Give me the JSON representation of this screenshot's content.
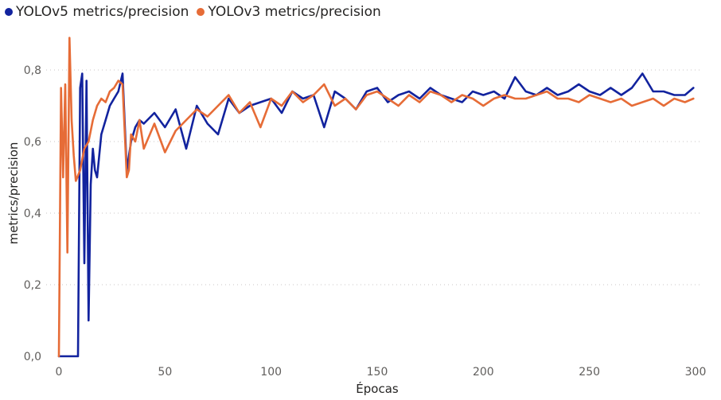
{
  "chart_data": {
    "type": "line",
    "title": "",
    "xlabel": "Épocas",
    "ylabel": "metrics/precision",
    "xlim": [
      0,
      300
    ],
    "ylim": [
      0,
      0.8
    ],
    "x_ticks": [
      0,
      50,
      100,
      150,
      200,
      250,
      300
    ],
    "x_tick_labels": [
      "0",
      "50",
      "100",
      "150",
      "200",
      "250",
      "300"
    ],
    "y_ticks": [
      0,
      0.2,
      0.4,
      0.6,
      0.8
    ],
    "y_tick_labels": [
      "0,0",
      "0,2",
      "0,4",
      "0,6",
      "0,8"
    ],
    "grid": "horizontal-dotted",
    "legend_position": "top-left",
    "series": [
      {
        "name": "YOLOv5 metrics/precision",
        "color": "#12239E",
        "x": [
          0,
          2,
          4,
          6,
          8,
          9,
          10,
          11,
          12,
          13,
          14,
          15,
          16,
          17,
          18,
          20,
          22,
          24,
          26,
          28,
          30,
          32,
          34,
          36,
          38,
          40,
          45,
          50,
          55,
          60,
          65,
          70,
          75,
          80,
          85,
          90,
          95,
          100,
          105,
          110,
          115,
          120,
          125,
          130,
          135,
          140,
          145,
          150,
          155,
          160,
          165,
          170,
          175,
          180,
          185,
          190,
          195,
          200,
          205,
          210,
          215,
          220,
          225,
          230,
          235,
          240,
          245,
          250,
          255,
          260,
          265,
          270,
          275,
          280,
          285,
          290,
          295,
          299
        ],
        "y": [
          0.0,
          0.0,
          0.0,
          0.0,
          0.0,
          0.0,
          0.75,
          0.79,
          0.26,
          0.77,
          0.1,
          0.48,
          0.58,
          0.52,
          0.5,
          0.62,
          0.66,
          0.7,
          0.72,
          0.74,
          0.79,
          0.52,
          0.6,
          0.64,
          0.66,
          0.65,
          0.68,
          0.64,
          0.69,
          0.58,
          0.7,
          0.65,
          0.62,
          0.72,
          0.68,
          0.7,
          0.71,
          0.72,
          0.68,
          0.74,
          0.72,
          0.73,
          0.64,
          0.74,
          0.72,
          0.69,
          0.74,
          0.75,
          0.71,
          0.73,
          0.74,
          0.72,
          0.75,
          0.73,
          0.72,
          0.71,
          0.74,
          0.73,
          0.74,
          0.72,
          0.78,
          0.74,
          0.73,
          0.75,
          0.73,
          0.74,
          0.76,
          0.74,
          0.73,
          0.75,
          0.73,
          0.75,
          0.79,
          0.74,
          0.74,
          0.73,
          0.73,
          0.75
        ]
      },
      {
        "name": "YOLOv3 metrics/precision",
        "color": "#E66C37",
        "x": [
          0,
          1,
          2,
          3,
          4,
          5,
          6,
          7,
          8,
          10,
          12,
          14,
          16,
          18,
          20,
          22,
          24,
          26,
          28,
          30,
          32,
          33,
          34,
          36,
          38,
          40,
          45,
          50,
          55,
          60,
          65,
          70,
          75,
          80,
          85,
          90,
          95,
          100,
          105,
          110,
          115,
          120,
          125,
          130,
          135,
          140,
          145,
          150,
          155,
          160,
          165,
          170,
          175,
          180,
          185,
          190,
          195,
          200,
          205,
          210,
          215,
          220,
          225,
          230,
          235,
          240,
          245,
          250,
          255,
          260,
          265,
          270,
          275,
          280,
          285,
          290,
          295,
          299
        ],
        "y": [
          0.0,
          0.75,
          0.5,
          0.76,
          0.29,
          0.89,
          0.66,
          0.56,
          0.49,
          0.52,
          0.58,
          0.6,
          0.66,
          0.7,
          0.72,
          0.71,
          0.74,
          0.75,
          0.77,
          0.76,
          0.5,
          0.52,
          0.62,
          0.6,
          0.66,
          0.58,
          0.65,
          0.57,
          0.63,
          0.66,
          0.69,
          0.67,
          0.7,
          0.73,
          0.68,
          0.71,
          0.64,
          0.72,
          0.7,
          0.74,
          0.71,
          0.73,
          0.76,
          0.7,
          0.72,
          0.69,
          0.73,
          0.74,
          0.72,
          0.7,
          0.73,
          0.71,
          0.74,
          0.73,
          0.71,
          0.73,
          0.72,
          0.7,
          0.72,
          0.73,
          0.72,
          0.72,
          0.73,
          0.74,
          0.72,
          0.72,
          0.71,
          0.73,
          0.72,
          0.71,
          0.72,
          0.7,
          0.71,
          0.72,
          0.7,
          0.72,
          0.71,
          0.72
        ]
      }
    ]
  }
}
